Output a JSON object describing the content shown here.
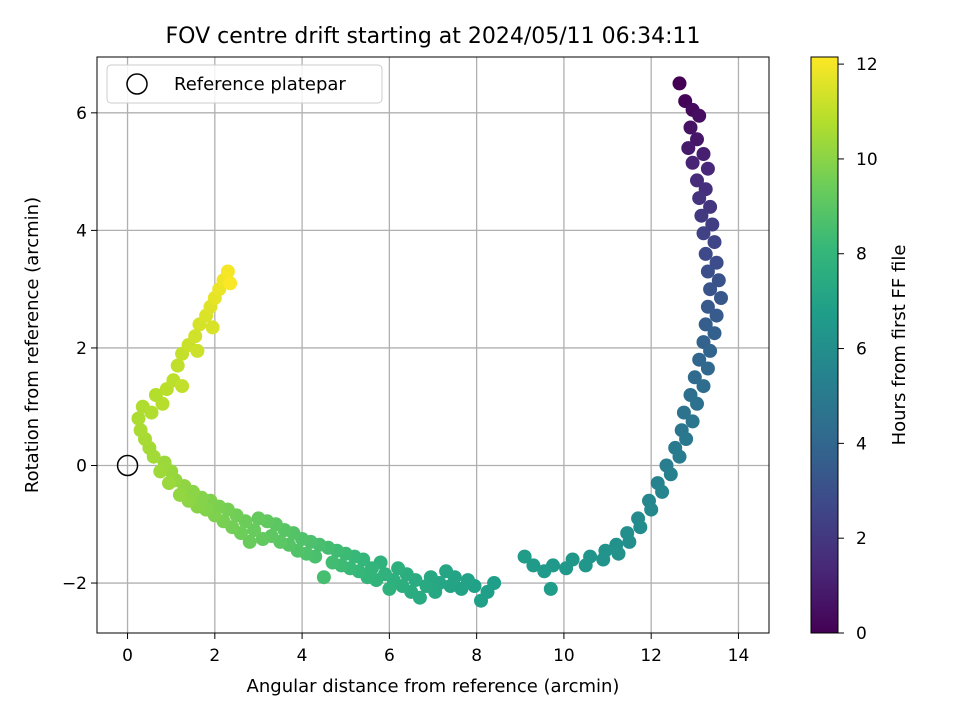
{
  "chart_data": {
    "type": "scatter",
    "title": "FOV centre drift starting at 2024/05/11 06:34:11",
    "xlabel": "Angular distance from reference (arcmin)",
    "ylabel": "Rotation from reference (arcmin)",
    "xlim": [
      -0.7,
      14.7
    ],
    "ylim": [
      -2.85,
      6.95
    ],
    "xticks": [
      0,
      2,
      4,
      6,
      8,
      10,
      12,
      14
    ],
    "yticks": [
      -2,
      0,
      2,
      4,
      6
    ],
    "grid": true,
    "legend": {
      "placement": "top-left",
      "entries": [
        "Reference platepar"
      ]
    },
    "reference_point": {
      "x": 0,
      "y": 0,
      "label": "Reference platepar"
    },
    "colorbar": {
      "label": "Hours from first FF file",
      "range": [
        0,
        12.15
      ],
      "ticks": [
        0,
        2,
        4,
        6,
        8,
        10,
        12
      ],
      "colormap": "viridis"
    },
    "series": [
      {
        "color_by": "hours",
        "points": [
          [
            12.65,
            6.5,
            0.0
          ],
          [
            12.78,
            6.2,
            0.15
          ],
          [
            12.95,
            6.05,
            0.3
          ],
          [
            13.1,
            5.95,
            0.45
          ],
          [
            12.9,
            5.75,
            0.6
          ],
          [
            13.05,
            5.55,
            0.75
          ],
          [
            12.85,
            5.4,
            0.9
          ],
          [
            13.2,
            5.3,
            1.05
          ],
          [
            12.95,
            5.15,
            1.2
          ],
          [
            13.3,
            5.05,
            1.35
          ],
          [
            13.05,
            4.85,
            1.5
          ],
          [
            13.25,
            4.7,
            1.65
          ],
          [
            13.1,
            4.55,
            1.8
          ],
          [
            13.35,
            4.4,
            1.95
          ],
          [
            13.15,
            4.25,
            2.1
          ],
          [
            13.4,
            4.1,
            2.25
          ],
          [
            13.2,
            3.95,
            2.4
          ],
          [
            13.45,
            3.8,
            2.55
          ],
          [
            13.25,
            3.6,
            2.7
          ],
          [
            13.5,
            3.45,
            2.85
          ],
          [
            13.3,
            3.3,
            3.0
          ],
          [
            13.55,
            3.15,
            3.1
          ],
          [
            13.35,
            3.0,
            3.2
          ],
          [
            13.6,
            2.85,
            3.3
          ],
          [
            13.3,
            2.7,
            3.4
          ],
          [
            13.5,
            2.55,
            3.5
          ],
          [
            13.25,
            2.4,
            3.6
          ],
          [
            13.45,
            2.25,
            3.7
          ],
          [
            13.2,
            2.1,
            3.8
          ],
          [
            13.35,
            1.95,
            3.9
          ],
          [
            13.1,
            1.8,
            4.0
          ],
          [
            13.3,
            1.65,
            4.1
          ],
          [
            13.0,
            1.5,
            4.2
          ],
          [
            13.2,
            1.35,
            4.3
          ],
          [
            12.9,
            1.2,
            4.4
          ],
          [
            13.05,
            1.05,
            4.5
          ],
          [
            12.75,
            0.9,
            4.6
          ],
          [
            12.95,
            0.75,
            4.7
          ],
          [
            12.7,
            0.6,
            4.8
          ],
          [
            12.8,
            0.45,
            4.9
          ],
          [
            12.55,
            0.3,
            5.0
          ],
          [
            12.65,
            0.15,
            5.1
          ],
          [
            12.35,
            0.0,
            5.2
          ],
          [
            12.45,
            -0.15,
            5.3
          ],
          [
            12.15,
            -0.3,
            5.4
          ],
          [
            12.25,
            -0.45,
            5.5
          ],
          [
            11.95,
            -0.6,
            5.6
          ],
          [
            12.0,
            -0.75,
            5.7
          ],
          [
            11.7,
            -0.9,
            5.8
          ],
          [
            11.75,
            -1.05,
            5.9
          ],
          [
            11.45,
            -1.15,
            6.0
          ],
          [
            11.5,
            -1.3,
            6.05
          ],
          [
            11.2,
            -1.35,
            6.1
          ],
          [
            11.25,
            -1.5,
            6.15
          ],
          [
            10.95,
            -1.45,
            6.2
          ],
          [
            10.9,
            -1.6,
            6.25
          ],
          [
            10.6,
            -1.55,
            6.3
          ],
          [
            10.5,
            -1.7,
            6.35
          ],
          [
            10.2,
            -1.6,
            6.4
          ],
          [
            10.05,
            -1.75,
            6.45
          ],
          [
            9.75,
            -1.7,
            6.5
          ],
          [
            9.55,
            -1.8,
            6.55
          ],
          [
            9.3,
            -1.7,
            6.6
          ],
          [
            9.1,
            -1.55,
            6.65
          ],
          [
            9.7,
            -2.1,
            6.7
          ],
          [
            8.4,
            -2.0,
            6.75
          ],
          [
            8.25,
            -2.15,
            6.8
          ],
          [
            8.1,
            -2.3,
            6.85
          ],
          [
            7.95,
            -2.05,
            6.9
          ],
          [
            7.8,
            -1.95,
            6.95
          ],
          [
            7.65,
            -2.1,
            7.0
          ],
          [
            7.5,
            -1.9,
            7.05
          ],
          [
            7.4,
            -2.05,
            7.1
          ],
          [
            7.3,
            -1.8,
            7.15
          ],
          [
            7.15,
            -2.0,
            7.2
          ],
          [
            7.05,
            -2.15,
            7.25
          ],
          [
            6.95,
            -1.9,
            7.3
          ],
          [
            6.85,
            -2.05,
            7.35
          ],
          [
            6.7,
            -2.25,
            7.4
          ],
          [
            6.6,
            -1.95,
            7.45
          ],
          [
            6.5,
            -2.15,
            7.5
          ],
          [
            6.4,
            -1.85,
            7.55
          ],
          [
            6.3,
            -2.05,
            7.6
          ],
          [
            6.2,
            -1.75,
            7.65
          ],
          [
            6.1,
            -1.95,
            7.7
          ],
          [
            6.0,
            -2.1,
            7.75
          ],
          [
            5.9,
            -1.85,
            7.8
          ],
          [
            5.8,
            -1.65,
            7.85
          ],
          [
            5.7,
            -1.95,
            7.9
          ],
          [
            5.6,
            -1.75,
            7.95
          ],
          [
            5.5,
            -1.9,
            8.0
          ],
          [
            5.4,
            -1.6,
            8.05
          ],
          [
            5.3,
            -1.8,
            8.1
          ],
          [
            5.2,
            -1.55,
            8.15
          ],
          [
            5.1,
            -1.75,
            8.2
          ],
          [
            5.0,
            -1.5,
            8.25
          ],
          [
            4.9,
            -1.7,
            8.3
          ],
          [
            4.8,
            -1.45,
            8.35
          ],
          [
            4.7,
            -1.65,
            8.4
          ],
          [
            4.6,
            -1.4,
            8.45
          ],
          [
            4.5,
            -1.9,
            8.5
          ],
          [
            4.4,
            -1.35,
            8.55
          ],
          [
            4.3,
            -1.55,
            8.6
          ],
          [
            4.2,
            -1.3,
            8.65
          ],
          [
            4.1,
            -1.5,
            8.7
          ],
          [
            4.0,
            -1.25,
            8.75
          ],
          [
            3.9,
            -1.45,
            8.8
          ],
          [
            3.8,
            -1.15,
            8.85
          ],
          [
            3.7,
            -1.35,
            8.9
          ],
          [
            3.6,
            -1.1,
            8.95
          ],
          [
            3.5,
            -1.3,
            9.0
          ],
          [
            3.4,
            -1.0,
            9.05
          ],
          [
            3.3,
            -1.2,
            9.1
          ],
          [
            3.2,
            -0.95,
            9.15
          ],
          [
            3.1,
            -1.25,
            9.2
          ],
          [
            3.0,
            -0.9,
            9.25
          ],
          [
            2.9,
            -1.1,
            9.3
          ],
          [
            2.8,
            -1.3,
            9.35
          ],
          [
            2.7,
            -0.95,
            9.4
          ],
          [
            2.6,
            -1.15,
            9.45
          ],
          [
            2.5,
            -0.85,
            9.5
          ],
          [
            2.4,
            -1.05,
            9.55
          ],
          [
            2.3,
            -0.75,
            9.6
          ],
          [
            2.2,
            -0.95,
            9.65
          ],
          [
            2.1,
            -0.7,
            9.7
          ],
          [
            2.0,
            -0.85,
            9.75
          ],
          [
            1.9,
            -0.6,
            9.8
          ],
          [
            1.8,
            -0.75,
            9.85
          ],
          [
            1.7,
            -0.55,
            9.9
          ],
          [
            1.6,
            -0.7,
            9.95
          ],
          [
            1.5,
            -0.45,
            10.0
          ],
          [
            1.4,
            -0.6,
            10.05
          ],
          [
            1.3,
            -0.35,
            10.1
          ],
          [
            1.2,
            -0.5,
            10.15
          ],
          [
            1.1,
            -0.25,
            10.2
          ],
          [
            1.0,
            -0.1,
            10.25
          ],
          [
            0.95,
            -0.3,
            10.3
          ],
          [
            0.85,
            0.05,
            10.35
          ],
          [
            0.75,
            -0.1,
            10.4
          ],
          [
            0.6,
            0.15,
            10.45
          ],
          [
            0.5,
            0.3,
            10.5
          ],
          [
            0.4,
            0.45,
            10.55
          ],
          [
            0.3,
            0.6,
            10.6
          ],
          [
            0.25,
            0.8,
            10.65
          ],
          [
            0.35,
            1.0,
            10.7
          ],
          [
            0.55,
            0.9,
            10.75
          ],
          [
            0.65,
            1.2,
            10.8
          ],
          [
            0.8,
            1.05,
            10.85
          ],
          [
            0.9,
            1.3,
            10.9
          ],
          [
            1.05,
            1.45,
            10.95
          ],
          [
            1.15,
            1.7,
            11.0
          ],
          [
            1.25,
            1.9,
            11.1
          ],
          [
            1.4,
            2.05,
            11.2
          ],
          [
            1.55,
            2.2,
            11.3
          ],
          [
            1.65,
            2.4,
            11.4
          ],
          [
            1.8,
            2.55,
            11.5
          ],
          [
            1.9,
            2.7,
            11.6
          ],
          [
            2.0,
            2.85,
            11.7
          ],
          [
            2.1,
            3.0,
            11.8
          ],
          [
            2.2,
            3.15,
            11.9
          ],
          [
            2.3,
            3.3,
            12.0
          ],
          [
            2.35,
            3.1,
            12.1
          ],
          [
            1.6,
            1.95,
            11.25
          ],
          [
            1.95,
            2.35,
            11.45
          ],
          [
            1.25,
            1.35,
            11.05
          ]
        ]
      }
    ]
  }
}
